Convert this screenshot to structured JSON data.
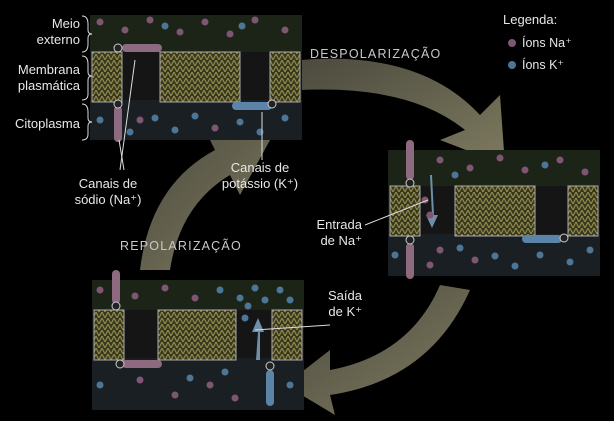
{
  "labels": {
    "meio_externo": "Meio\nexterno",
    "membrana": "Membrana\nplasmática",
    "citoplasma": "Citoplasma",
    "canais_sodio": "Canais de\nsódio (Na⁺)",
    "canais_potassio": "Canais de\npotássio (K⁺)",
    "entrada": "Entrada\nde Na⁺",
    "saida": "Saída\nde K⁺"
  },
  "phases": {
    "despolarizacao": "DESPOLARIZAÇÃO",
    "repolarizacao": "REPOLARIZAÇÃO"
  },
  "legend": {
    "title": "Legenda:",
    "na": "Íons Na⁺",
    "k": "Íons K⁺"
  },
  "colors": {
    "na_ion": "#7e5672",
    "k_ion": "#4d7596",
    "membrane": "#7c7a3e",
    "arrow": "#6d6a55",
    "na_channel": "#8e6a80",
    "k_channel": "#5b84a8"
  }
}
